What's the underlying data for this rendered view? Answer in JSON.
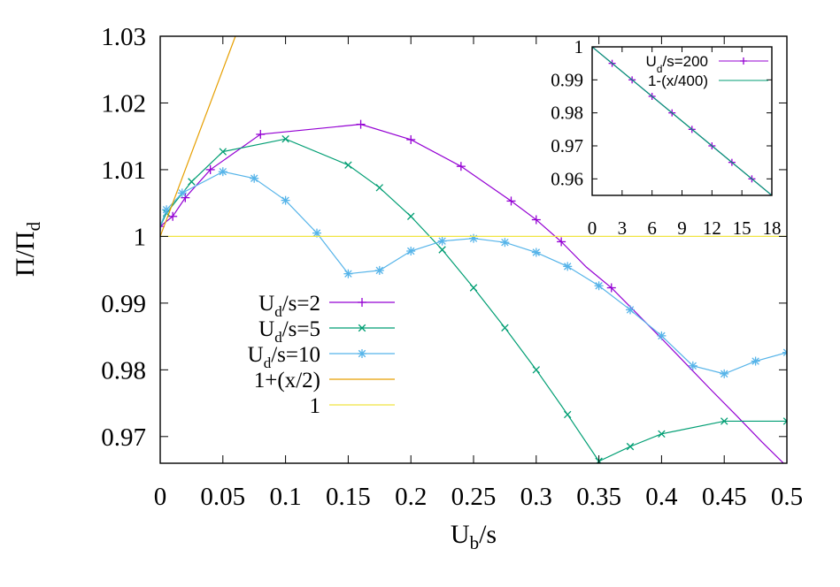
{
  "chart_data": {
    "type": "line",
    "xlabel": {
      "main": "U",
      "sub": "b",
      "rest": "/s"
    },
    "ylabel": {
      "main": "Π/Π",
      "sub": "d"
    },
    "xlim": [
      0,
      0.5
    ],
    "ylim": [
      0.966,
      1.03
    ],
    "xticks": [
      "0",
      "0.05",
      "0.1",
      "0.15",
      "0.2",
      "0.25",
      "0.3",
      "0.35",
      "0.4",
      "0.45",
      "0.5"
    ],
    "yticks": [
      "0.97",
      "0.98",
      "0.99",
      "1",
      "1.01",
      "1.02",
      "1.03"
    ],
    "grid": false,
    "legend_position": "center-left",
    "series": [
      {
        "name": "U_d/s=2",
        "legend": {
          "main": "U",
          "sub": "d",
          "rest": "/s=2"
        },
        "color": "#9400d3",
        "marker": "plus",
        "x": [
          0,
          0.01,
          0.02,
          0.04,
          0.08,
          0.16,
          0.2,
          0.24,
          0.28,
          0.3,
          0.32,
          0.34,
          0.36,
          0.38,
          0.4,
          0.42,
          0.44,
          0.46,
          0.48,
          0.5
        ],
        "y": [
          1.0015,
          1.003,
          1.0058,
          1.01,
          1.0153,
          1.0168,
          1.0145,
          1.0105,
          1.0053,
          1.0025,
          0.9992,
          0.9954,
          0.9923,
          0.9885,
          0.9847,
          0.9808,
          0.9769,
          0.9731,
          0.9692,
          0.9655
        ],
        "markers_x": [
          0,
          0.01,
          0.02,
          0.04,
          0.08,
          0.16,
          0.2,
          0.24,
          0.28,
          0.3,
          0.32,
          0.36
        ]
      },
      {
        "name": "U_d/s=5",
        "legend": {
          "main": "U",
          "sub": "d",
          "rest": "/s=5"
        },
        "color": "#009e73",
        "marker": "cross",
        "x": [
          0,
          0.005,
          0.025,
          0.05,
          0.1,
          0.15,
          0.175,
          0.2,
          0.225,
          0.25,
          0.275,
          0.3,
          0.325,
          0.35,
          0.375,
          0.4,
          0.45,
          0.5
        ],
        "y": [
          1.0015,
          1.0035,
          1.0082,
          1.0127,
          1.0146,
          1.0107,
          1.0073,
          1.003,
          0.998,
          0.9923,
          0.9863,
          0.98,
          0.9733,
          0.9663,
          0.9685,
          0.9704,
          0.9723,
          0.9723
        ],
        "markers_x": [
          0.005,
          0.025,
          0.05,
          0.1,
          0.15,
          0.175,
          0.2,
          0.225,
          0.25,
          0.275,
          0.3,
          0.325,
          0.35,
          0.375,
          0.4,
          0.45,
          0.5
        ]
      },
      {
        "name": "U_d/s=10",
        "legend": {
          "main": "U",
          "sub": "d",
          "rest": "/s=10"
        },
        "color": "#56b4e9",
        "marker": "star",
        "x": [
          0,
          0.005,
          0.0175,
          0.05,
          0.075,
          0.1,
          0.125,
          0.15,
          0.175,
          0.2,
          0.225,
          0.25,
          0.275,
          0.3,
          0.325,
          0.35,
          0.375,
          0.4,
          0.425,
          0.45,
          0.475,
          0.5
        ],
        "y": [
          1.0015,
          1.004,
          1.0065,
          1.0097,
          1.0087,
          1.0054,
          1.0005,
          0.9944,
          0.9949,
          0.9978,
          0.9993,
          0.9997,
          0.9991,
          0.9976,
          0.9955,
          0.9926,
          0.989,
          0.9851,
          0.9806,
          0.9794,
          0.9813,
          0.9826
        ],
        "markers_x": [
          0.005,
          0.0175,
          0.05,
          0.075,
          0.1,
          0.125,
          0.15,
          0.175,
          0.2,
          0.225,
          0.25,
          0.275,
          0.3,
          0.325,
          0.35,
          0.375,
          0.4,
          0.425,
          0.45,
          0.475,
          0.5
        ]
      },
      {
        "name": "1+(x/2)",
        "legend": {
          "main": "1+(x/2)",
          "sub": "",
          "rest": ""
        },
        "color": "#e69f00",
        "marker": "none",
        "x": [
          0,
          0.06
        ],
        "y": [
          1,
          1.03
        ]
      },
      {
        "name": "1",
        "legend": {
          "main": "1",
          "sub": "",
          "rest": ""
        },
        "color": "#f0e442",
        "marker": "none",
        "x": [
          0,
          0.5
        ],
        "y": [
          1,
          1
        ]
      }
    ],
    "inset": {
      "type": "line",
      "xlim": [
        0,
        18
      ],
      "ylim": [
        0.955,
        1.0
      ],
      "xticks": [
        "0",
        "3",
        "6",
        "9",
        "12",
        "15",
        "18"
      ],
      "yticks": [
        "0.96",
        "0.97",
        "0.98",
        "0.99",
        "1"
      ],
      "legend_position": "top-right",
      "series": [
        {
          "name": "U_d/s=200",
          "legend": {
            "main": "U",
            "sub": "d",
            "rest": "/s=200"
          },
          "color": "#9400d3",
          "marker": "plus",
          "x": [
            0,
            2,
            4,
            6,
            8,
            10,
            12,
            14,
            16,
            18
          ],
          "y": [
            1.0,
            0.995,
            0.99,
            0.985,
            0.98,
            0.975,
            0.97,
            0.965,
            0.96,
            0.955
          ]
        },
        {
          "name": "1-(x/400)",
          "legend": {
            "main": "1-(x/400)",
            "sub": "",
            "rest": ""
          },
          "color": "#009e73",
          "marker": "none",
          "x": [
            0,
            18
          ],
          "y": [
            1.0,
            0.955
          ]
        }
      ]
    }
  }
}
